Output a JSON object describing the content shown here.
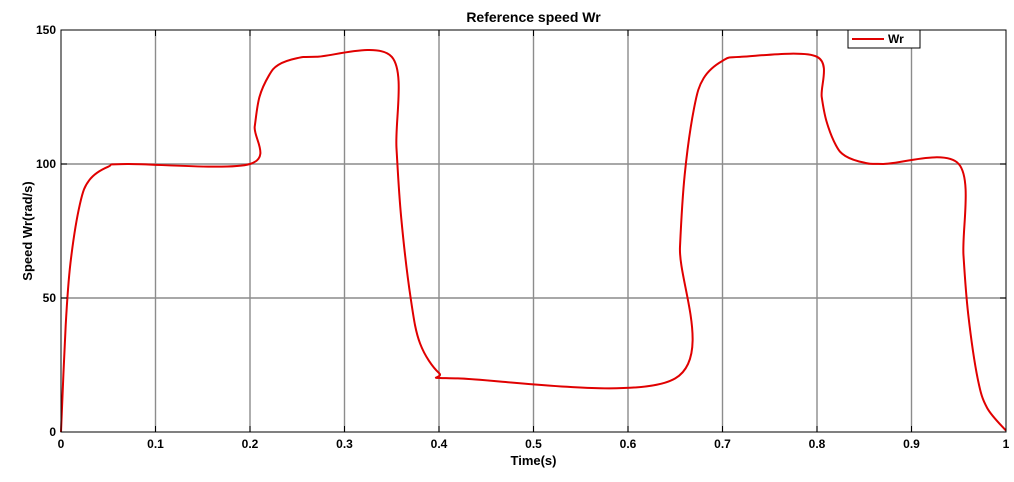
{
  "chart_data": {
    "type": "line",
    "title": "Reference speed Wr",
    "xlabel": "Time(s)",
    "ylabel": "Speed Wr(rad/s)",
    "xlim": [
      0,
      1
    ],
    "ylim": [
      0,
      150
    ],
    "x_ticks": [
      "0",
      "0.1",
      "0.2",
      "0.3",
      "0.4",
      "0.5",
      "0.6",
      "0.7",
      "0.8",
      "0.9",
      "1"
    ],
    "y_ticks": [
      "0",
      "50",
      "100",
      "150"
    ],
    "grid": true,
    "legend": {
      "placement": "top-right",
      "entries": [
        "Wr"
      ]
    },
    "series": [
      {
        "name": "Wr",
        "color": "#e00000",
        "x": [
          0,
          0.005,
          0.01,
          0.02,
          0.03,
          0.05,
          0.07,
          0.2,
          0.205,
          0.21,
          0.22,
          0.23,
          0.25,
          0.27,
          0.35,
          0.355,
          0.36,
          0.37,
          0.38,
          0.4,
          0.42,
          0.65,
          0.655,
          0.66,
          0.67,
          0.68,
          0.7,
          0.72,
          0.8,
          0.805,
          0.81,
          0.82,
          0.83,
          0.85,
          0.87,
          0.95,
          0.955,
          0.96,
          0.97,
          0.98,
          1.0
        ],
        "y": [
          0,
          40,
          63,
          85,
          94,
          99,
          100,
          100,
          114,
          125,
          133,
          137,
          139.5,
          140,
          140,
          106,
          80,
          50,
          33,
          22,
          20,
          20,
          69,
          96,
          121,
          132,
          138.5,
          140,
          140,
          125,
          116,
          107,
          103,
          100.5,
          100,
          100,
          66,
          44,
          20,
          9,
          0.5
        ]
      }
    ]
  }
}
